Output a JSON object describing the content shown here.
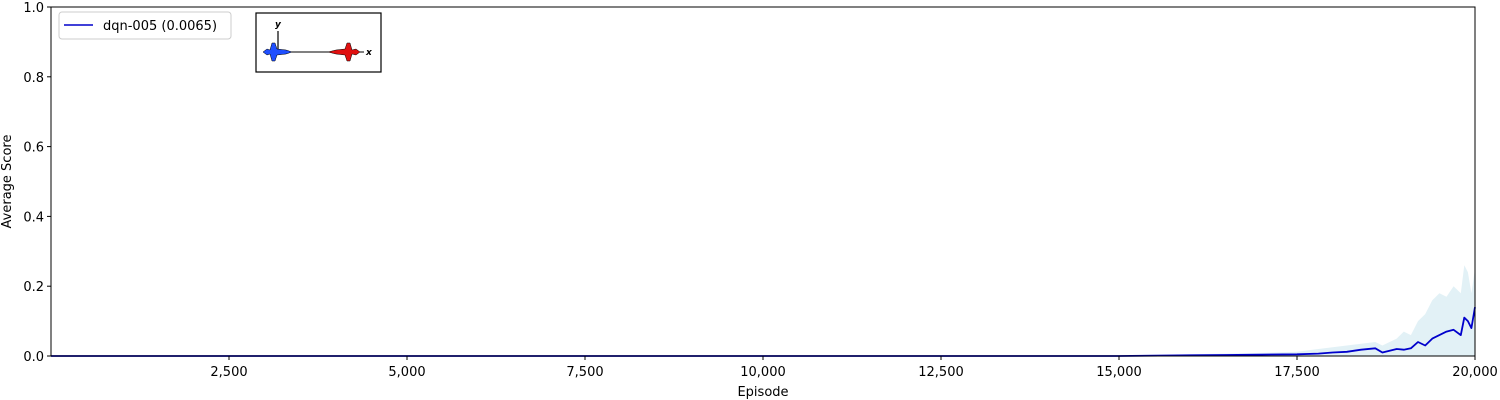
{
  "chart_data": {
    "type": "line",
    "xlabel": "Episode",
    "ylabel": "Average Score",
    "xlim": [
      0,
      20000
    ],
    "ylim": [
      0,
      1.0
    ],
    "x_ticks": [
      2500,
      5000,
      7500,
      10000,
      12500,
      15000,
      17500,
      20000
    ],
    "x_tick_labels": [
      "2,500",
      "5,000",
      "7,500",
      "10,000",
      "12,500",
      "15,000",
      "17,500",
      "20,000"
    ],
    "y_ticks": [
      0.0,
      0.2,
      0.4,
      0.6,
      0.8,
      1.0
    ],
    "y_tick_labels": [
      "0.0",
      "0.2",
      "0.4",
      "0.6",
      "0.8",
      "1.0"
    ],
    "grid": false,
    "legend_position": "top-left",
    "series": [
      {
        "name": "dqn-005 (0.0065)",
        "color": "#0000cc",
        "band_color": "#add8e6",
        "x": [
          0,
          2500,
          5000,
          7500,
          10000,
          12500,
          15000,
          16000,
          16500,
          17000,
          17500,
          17800,
          18000,
          18200,
          18400,
          18600,
          18700,
          18800,
          18900,
          19000,
          19100,
          19200,
          19300,
          19400,
          19500,
          19600,
          19700,
          19800,
          19850,
          19900,
          19950,
          20000
        ],
        "values": [
          0.0,
          0.0,
          0.0,
          0.0,
          0.0,
          0.0,
          0.0,
          0.002,
          0.003,
          0.004,
          0.005,
          0.007,
          0.01,
          0.012,
          0.018,
          0.022,
          0.01,
          0.015,
          0.02,
          0.018,
          0.022,
          0.04,
          0.03,
          0.05,
          0.06,
          0.07,
          0.075,
          0.06,
          0.11,
          0.1,
          0.08,
          0.14
        ],
        "band_upper": [
          0.0,
          0.0,
          0.0,
          0.0,
          0.001,
          0.001,
          0.002,
          0.005,
          0.007,
          0.009,
          0.012,
          0.02,
          0.025,
          0.03,
          0.035,
          0.04,
          0.03,
          0.04,
          0.05,
          0.07,
          0.06,
          0.1,
          0.12,
          0.16,
          0.18,
          0.17,
          0.2,
          0.18,
          0.26,
          0.24,
          0.18,
          0.25
        ],
        "band_lower": [
          0.0,
          0.0,
          0.0,
          0.0,
          0.0,
          0.0,
          0.0,
          0.0,
          0.0,
          0.0,
          0.0,
          0.0,
          0.0,
          0.0,
          0.0,
          0.0,
          0.0,
          0.0,
          0.0,
          0.0,
          0.0,
          0.0,
          0.0,
          0.0,
          0.0,
          0.0,
          0.0,
          0.0,
          0.0,
          0.0,
          0.0,
          0.0
        ]
      }
    ],
    "inset": {
      "axis_labels": [
        "y",
        "x"
      ],
      "aircraft_colors": [
        "#1f4fff",
        "#e01010"
      ]
    }
  }
}
